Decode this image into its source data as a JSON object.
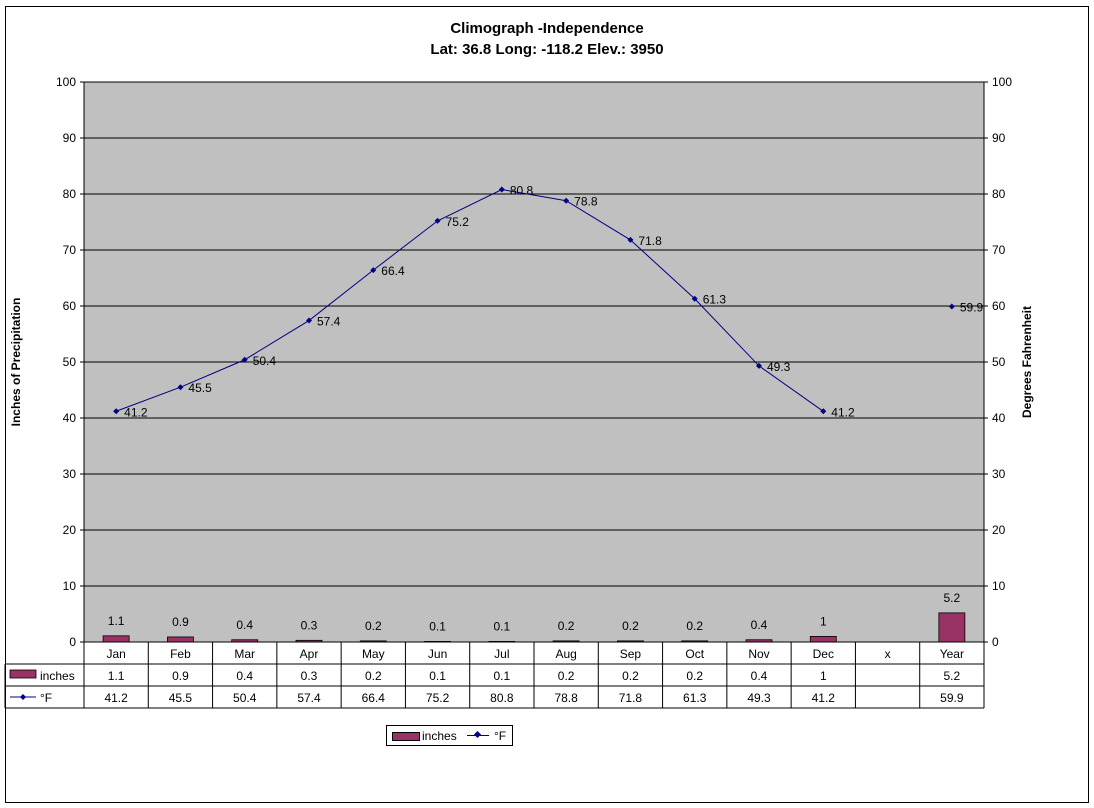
{
  "chart_data": {
    "type": "bar+line",
    "title": "Climograph -Independence",
    "subtitle": "Lat: 36.8 Long: -118.2 Elev.: 3950",
    "ylabel_left": "Inches of Precipitation",
    "ylabel_right": "Degrees Fahrenheit",
    "ylim": [
      0,
      100
    ],
    "yticks": [
      0,
      10,
      20,
      30,
      40,
      50,
      60,
      70,
      80,
      90,
      100
    ],
    "grid": true,
    "categories": [
      "Jan",
      "Feb",
      "Mar",
      "Apr",
      "May",
      "Jun",
      "Jul",
      "Aug",
      "Sep",
      "Oct",
      "Nov",
      "Dec",
      "x",
      "Year"
    ],
    "series": [
      {
        "name": "inches",
        "type": "bar",
        "color": "#993366",
        "values": [
          1.1,
          0.9,
          0.4,
          0.3,
          0.2,
          0.1,
          0.1,
          0.2,
          0.2,
          0.2,
          0.4,
          1,
          null,
          5.2
        ],
        "labels": [
          "1.1",
          "0.9",
          "0.4",
          "0.3",
          "0.2",
          "0.1",
          "0.1",
          "0.2",
          "0.2",
          "0.2",
          "0.4",
          "1",
          "",
          "5.2"
        ]
      },
      {
        "name": "°F",
        "type": "line",
        "color": "#000080",
        "values": [
          41.2,
          45.5,
          50.4,
          57.4,
          66.4,
          75.2,
          80.8,
          78.8,
          71.8,
          61.3,
          49.3,
          41.2,
          null,
          59.9
        ],
        "labels": [
          "41.2",
          "45.5",
          "50.4",
          "57.4",
          "66.4",
          "75.2",
          "80.8",
          "78.8",
          "71.8",
          "61.3",
          "49.3",
          "41.2",
          "",
          "59.9"
        ]
      }
    ],
    "plot_background": "#C0C0C0",
    "legend_position": "bottom",
    "data_table": true
  }
}
